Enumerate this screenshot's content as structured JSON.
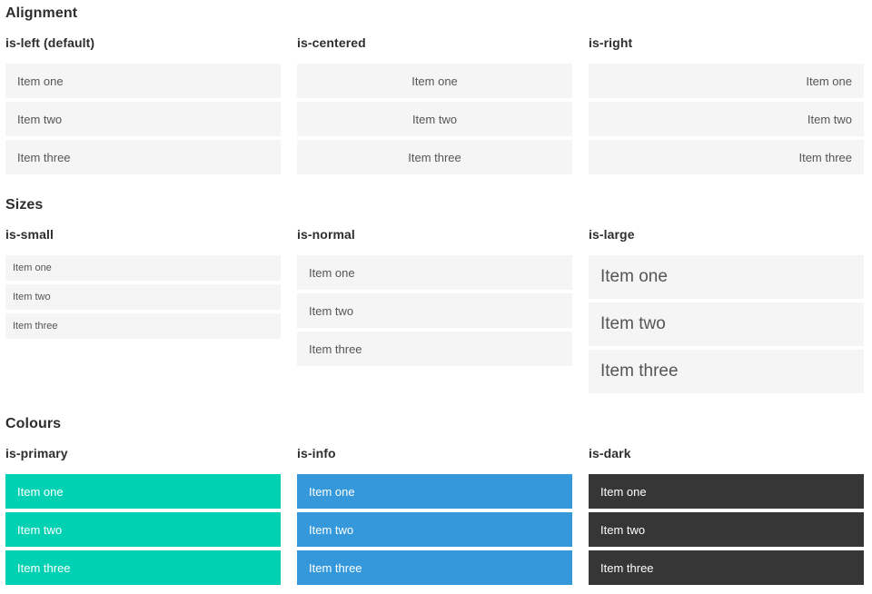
{
  "theme": {
    "primary": "#00d1b2",
    "info": "#3498db",
    "dark": "#363636",
    "item_bg": "#f5f5f5",
    "item_text": "#555555",
    "heading_text": "#2e2e2e"
  },
  "sections": [
    {
      "title": "Alignment",
      "groups": [
        {
          "label": "is-left (default)",
          "variant": "left",
          "items": [
            "Item one",
            "Item two",
            "Item three"
          ]
        },
        {
          "label": "is-centered",
          "variant": "centered",
          "items": [
            "Item one",
            "Item two",
            "Item three"
          ]
        },
        {
          "label": "is-right",
          "variant": "right",
          "items": [
            "Item one",
            "Item two",
            "Item three"
          ]
        }
      ]
    },
    {
      "title": "Sizes",
      "groups": [
        {
          "label": "is-small",
          "variant": "small",
          "items": [
            "Item one",
            "Item two",
            "Item three"
          ]
        },
        {
          "label": "is-normal",
          "variant": "normal",
          "items": [
            "Item one",
            "Item two",
            "Item three"
          ]
        },
        {
          "label": "is-large",
          "variant": "large",
          "items": [
            "Item one",
            "Item two",
            "Item three"
          ]
        }
      ]
    },
    {
      "title": "Colours",
      "groups": [
        {
          "label": "is-primary",
          "variant": "primary",
          "items": [
            "Item one",
            "Item two",
            "Item three"
          ]
        },
        {
          "label": "is-info",
          "variant": "info",
          "items": [
            "Item one",
            "Item two",
            "Item three"
          ]
        },
        {
          "label": "is-dark",
          "variant": "dark",
          "items": [
            "Item one",
            "Item two",
            "Item three"
          ]
        }
      ]
    }
  ]
}
